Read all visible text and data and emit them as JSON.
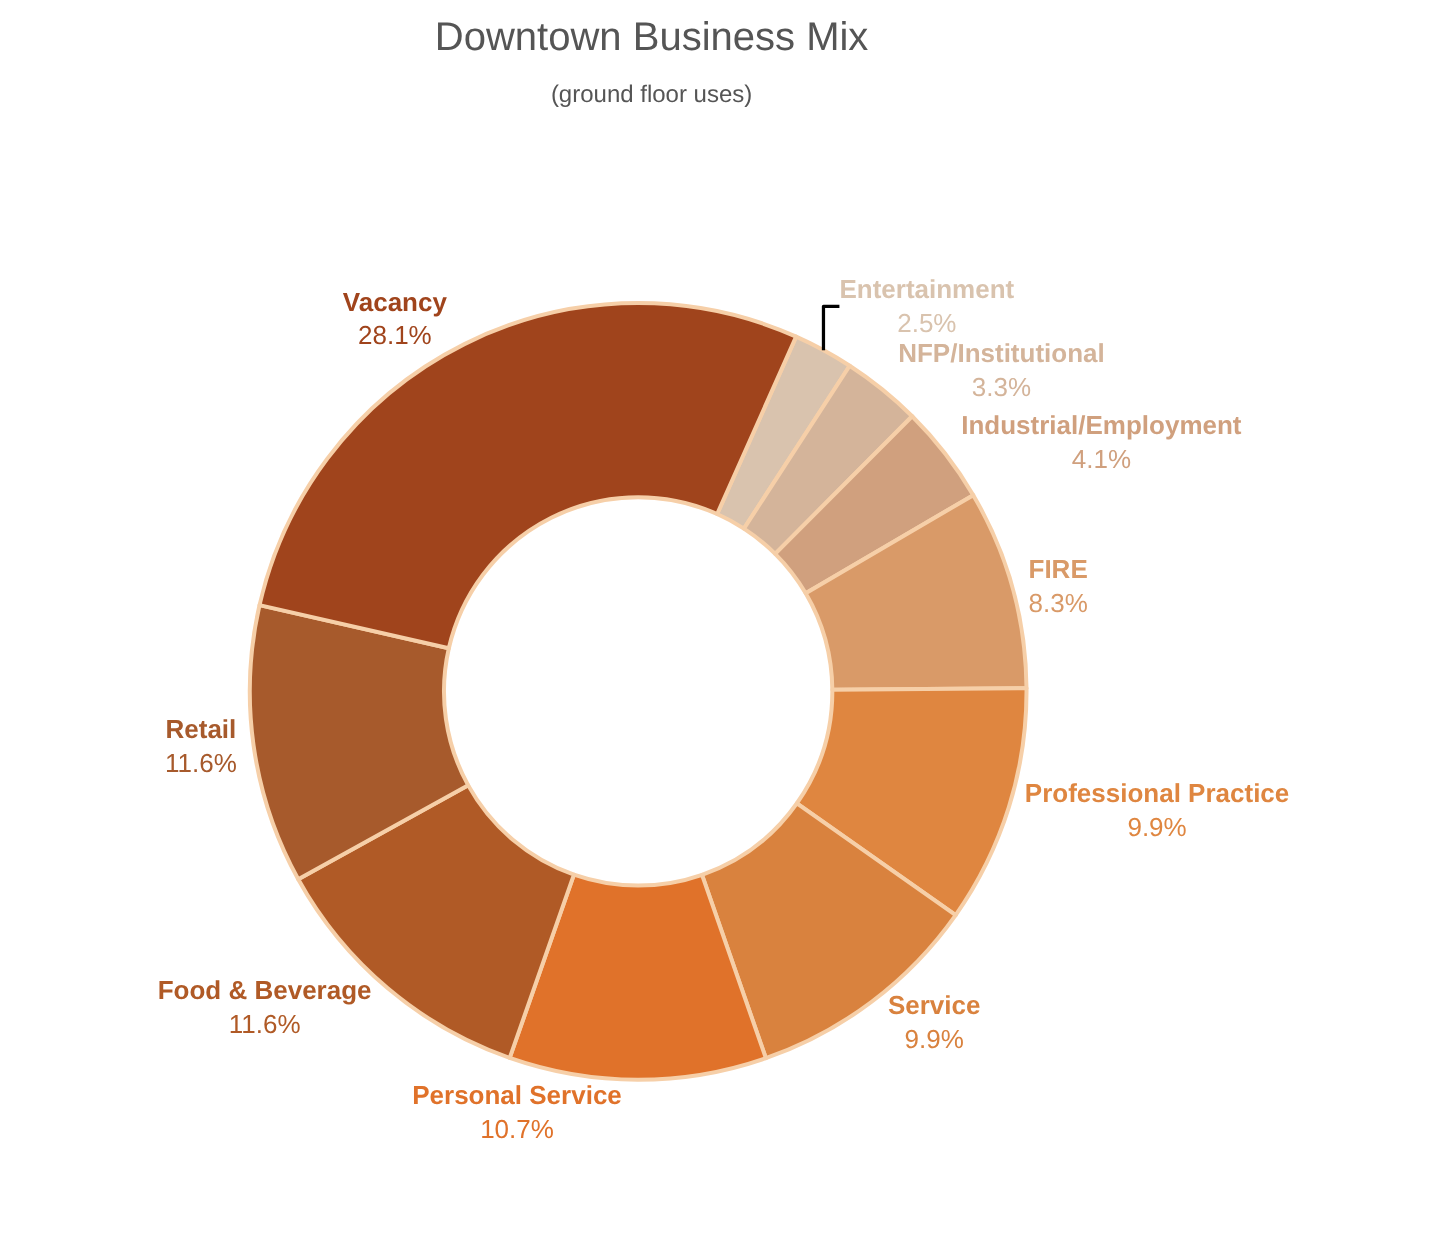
{
  "chart_data": {
    "type": "donut",
    "title": "Downtown Business Mix",
    "subtitle": "(ground floor uses)",
    "categories": [
      "Entertainment",
      "NFP/Institutional",
      "Industrial/Employment",
      "FIRE",
      "Professional Practice",
      "Service",
      "Personal Service",
      "Food & Beverage",
      "Retail",
      "Vacancy"
    ],
    "values": [
      2.5,
      3.3,
      4.1,
      8.3,
      9.9,
      9.9,
      10.7,
      11.6,
      11.6,
      28.1
    ],
    "value_labels": [
      "2.5%",
      "3.3%",
      "4.1%",
      "8.3%",
      "9.9%",
      "9.9%",
      "10.7%",
      "11.6%",
      "11.6%",
      "28.1%"
    ],
    "colors": [
      "#d9c3ae",
      "#d4b49a",
      "#d0a07e",
      "#d99a68",
      "#df8640",
      "#d9823e",
      "#e0722a",
      "#b05a26",
      "#a75a2c",
      "#a0441c"
    ],
    "legend": false
  }
}
